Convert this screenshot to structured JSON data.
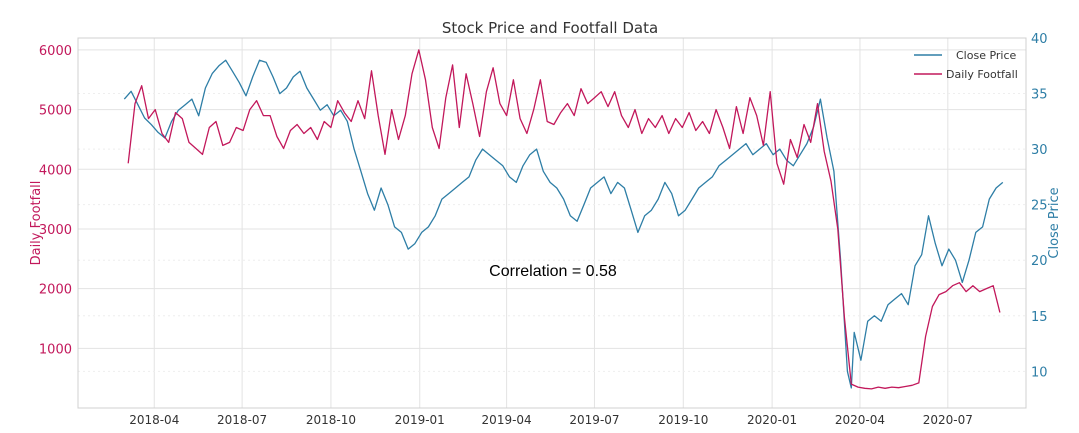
{
  "chart_data": {
    "type": "line",
    "title": "Stock Price and Footfall Data",
    "annotation": "Correlation = 0.58",
    "grid": true,
    "legend_position": "top-right",
    "colors": {
      "footfall": "#c2185b",
      "price": "#2e7ea6"
    },
    "x_axis": {
      "type": "date",
      "range": [
        "2018-01-12",
        "2020-09-20"
      ],
      "ticks": [
        "2018-04-01",
        "2018-07-01",
        "2018-10-01",
        "2019-01-01",
        "2019-04-01",
        "2019-07-01",
        "2019-10-01",
        "2020-01-01",
        "2020-04-01",
        "2020-07-01"
      ],
      "tick_labels": [
        "2018-04",
        "2018-07",
        "2018-10",
        "2019-01",
        "2019-04",
        "2019-07",
        "2019-10",
        "2020-01",
        "2020-04",
        "2020-07"
      ]
    },
    "y_left": {
      "label": "Daily Footfall",
      "range": [
        0,
        6200
      ],
      "ticks": [
        1000,
        2000,
        3000,
        4000,
        5000,
        6000
      ],
      "tick_labels": [
        "1000",
        "2000",
        "3000",
        "4000",
        "5000",
        "6000"
      ]
    },
    "y_right": {
      "label": "Close Price",
      "range": [
        6.7,
        40
      ],
      "ticks": [
        10,
        15,
        20,
        25,
        30,
        35,
        40
      ],
      "tick_labels": [
        "10",
        "15",
        "20",
        "25",
        "30",
        "35",
        "40"
      ]
    },
    "series": [
      {
        "name": "Close Price",
        "axis": "right",
        "color": "#2e7ea6",
        "points": [
          [
            "2018-03-01",
            34.5
          ],
          [
            "2018-03-08",
            35.2
          ],
          [
            "2018-03-15",
            34.0
          ],
          [
            "2018-03-22",
            32.8
          ],
          [
            "2018-03-29",
            32.2
          ],
          [
            "2018-04-05",
            31.5
          ],
          [
            "2018-04-12",
            31.0
          ],
          [
            "2018-04-19",
            32.5
          ],
          [
            "2018-04-26",
            33.5
          ],
          [
            "2018-05-03",
            34.0
          ],
          [
            "2018-05-10",
            34.5
          ],
          [
            "2018-05-17",
            33.0
          ],
          [
            "2018-05-24",
            35.5
          ],
          [
            "2018-05-31",
            36.8
          ],
          [
            "2018-06-07",
            37.5
          ],
          [
            "2018-06-14",
            38.0
          ],
          [
            "2018-06-21",
            37.0
          ],
          [
            "2018-06-28",
            36.0
          ],
          [
            "2018-07-05",
            34.8
          ],
          [
            "2018-07-12",
            36.5
          ],
          [
            "2018-07-19",
            38.0
          ],
          [
            "2018-07-26",
            37.8
          ],
          [
            "2018-08-02",
            36.5
          ],
          [
            "2018-08-09",
            35.0
          ],
          [
            "2018-08-16",
            35.5
          ],
          [
            "2018-08-23",
            36.5
          ],
          [
            "2018-08-30",
            37.0
          ],
          [
            "2018-09-06",
            35.5
          ],
          [
            "2018-09-13",
            34.5
          ],
          [
            "2018-09-20",
            33.5
          ],
          [
            "2018-09-27",
            34.0
          ],
          [
            "2018-10-04",
            33.0
          ],
          [
            "2018-10-11",
            33.5
          ],
          [
            "2018-10-18",
            32.5
          ],
          [
            "2018-10-25",
            30.0
          ],
          [
            "2018-11-01",
            28.0
          ],
          [
            "2018-11-08",
            26.0
          ],
          [
            "2018-11-15",
            24.5
          ],
          [
            "2018-11-22",
            26.5
          ],
          [
            "2018-11-29",
            25.0
          ],
          [
            "2018-12-06",
            23.0
          ],
          [
            "2018-12-13",
            22.5
          ],
          [
            "2018-12-20",
            21.0
          ],
          [
            "2018-12-27",
            21.5
          ],
          [
            "2019-01-03",
            22.5
          ],
          [
            "2019-01-10",
            23.0
          ],
          [
            "2019-01-17",
            24.0
          ],
          [
            "2019-01-24",
            25.5
          ],
          [
            "2019-01-31",
            26.0
          ],
          [
            "2019-02-07",
            26.5
          ],
          [
            "2019-02-14",
            27.0
          ],
          [
            "2019-02-21",
            27.5
          ],
          [
            "2019-02-28",
            29.0
          ],
          [
            "2019-03-07",
            30.0
          ],
          [
            "2019-03-14",
            29.5
          ],
          [
            "2019-03-21",
            29.0
          ],
          [
            "2019-03-28",
            28.5
          ],
          [
            "2019-04-04",
            27.5
          ],
          [
            "2019-04-11",
            27.0
          ],
          [
            "2019-04-18",
            28.5
          ],
          [
            "2019-04-25",
            29.5
          ],
          [
            "2019-05-02",
            30.0
          ],
          [
            "2019-05-09",
            28.0
          ],
          [
            "2019-05-16",
            27.0
          ],
          [
            "2019-05-23",
            26.5
          ],
          [
            "2019-05-30",
            25.5
          ],
          [
            "2019-06-06",
            24.0
          ],
          [
            "2019-06-13",
            23.5
          ],
          [
            "2019-06-20",
            25.0
          ],
          [
            "2019-06-27",
            26.5
          ],
          [
            "2019-07-04",
            27.0
          ],
          [
            "2019-07-11",
            27.5
          ],
          [
            "2019-07-18",
            26.0
          ],
          [
            "2019-07-25",
            27.0
          ],
          [
            "2019-08-01",
            26.5
          ],
          [
            "2019-08-08",
            24.5
          ],
          [
            "2019-08-15",
            22.5
          ],
          [
            "2019-08-22",
            24.0
          ],
          [
            "2019-08-29",
            24.5
          ],
          [
            "2019-09-05",
            25.5
          ],
          [
            "2019-09-12",
            27.0
          ],
          [
            "2019-09-19",
            26.0
          ],
          [
            "2019-09-26",
            24.0
          ],
          [
            "2019-10-03",
            24.5
          ],
          [
            "2019-10-10",
            25.5
          ],
          [
            "2019-10-17",
            26.5
          ],
          [
            "2019-10-24",
            27.0
          ],
          [
            "2019-10-31",
            27.5
          ],
          [
            "2019-11-07",
            28.5
          ],
          [
            "2019-11-14",
            29.0
          ],
          [
            "2019-11-21",
            29.5
          ],
          [
            "2019-11-28",
            30.0
          ],
          [
            "2019-12-05",
            30.5
          ],
          [
            "2019-12-12",
            29.5
          ],
          [
            "2019-12-19",
            30.0
          ],
          [
            "2019-12-26",
            30.5
          ],
          [
            "2020-01-02",
            29.5
          ],
          [
            "2020-01-09",
            30.0
          ],
          [
            "2020-01-16",
            29.0
          ],
          [
            "2020-01-23",
            28.5
          ],
          [
            "2020-01-30",
            29.5
          ],
          [
            "2020-02-06",
            30.5
          ],
          [
            "2020-02-13",
            32.0
          ],
          [
            "2020-02-20",
            34.5
          ],
          [
            "2020-02-27",
            31.0
          ],
          [
            "2020-03-05",
            28.0
          ],
          [
            "2020-03-12",
            20.0
          ],
          [
            "2020-03-19",
            10.0
          ],
          [
            "2020-03-23",
            8.5
          ],
          [
            "2020-03-26",
            13.5
          ],
          [
            "2020-04-02",
            11.0
          ],
          [
            "2020-04-09",
            14.5
          ],
          [
            "2020-04-16",
            15.0
          ],
          [
            "2020-04-23",
            14.5
          ],
          [
            "2020-04-30",
            16.0
          ],
          [
            "2020-05-07",
            16.5
          ],
          [
            "2020-05-14",
            17.0
          ],
          [
            "2020-05-21",
            16.0
          ],
          [
            "2020-05-28",
            19.5
          ],
          [
            "2020-06-04",
            20.5
          ],
          [
            "2020-06-11",
            24.0
          ],
          [
            "2020-06-18",
            21.5
          ],
          [
            "2020-06-25",
            19.5
          ],
          [
            "2020-07-02",
            21.0
          ],
          [
            "2020-07-09",
            20.0
          ],
          [
            "2020-07-16",
            18.0
          ],
          [
            "2020-07-23",
            20.0
          ],
          [
            "2020-07-30",
            22.5
          ],
          [
            "2020-08-06",
            23.0
          ],
          [
            "2020-08-13",
            25.5
          ],
          [
            "2020-08-20",
            26.5
          ],
          [
            "2020-08-27",
            27.0
          ]
        ]
      },
      {
        "name": "Daily Footfall",
        "axis": "left",
        "color": "#c2185b",
        "points": [
          [
            "2018-03-05",
            4100
          ],
          [
            "2018-03-12",
            5100
          ],
          [
            "2018-03-19",
            5400
          ],
          [
            "2018-03-26",
            4850
          ],
          [
            "2018-04-02",
            5000
          ],
          [
            "2018-04-09",
            4600
          ],
          [
            "2018-04-16",
            4450
          ],
          [
            "2018-04-23",
            4950
          ],
          [
            "2018-04-30",
            4850
          ],
          [
            "2018-05-07",
            4450
          ],
          [
            "2018-05-14",
            4350
          ],
          [
            "2018-05-21",
            4250
          ],
          [
            "2018-05-28",
            4700
          ],
          [
            "2018-06-04",
            4800
          ],
          [
            "2018-06-11",
            4400
          ],
          [
            "2018-06-18",
            4450
          ],
          [
            "2018-06-25",
            4700
          ],
          [
            "2018-07-02",
            4650
          ],
          [
            "2018-07-09",
            5000
          ],
          [
            "2018-07-16",
            5150
          ],
          [
            "2018-07-23",
            4900
          ],
          [
            "2018-07-30",
            4900
          ],
          [
            "2018-08-06",
            4550
          ],
          [
            "2018-08-13",
            4350
          ],
          [
            "2018-08-20",
            4650
          ],
          [
            "2018-08-27",
            4750
          ],
          [
            "2018-09-03",
            4600
          ],
          [
            "2018-09-10",
            4700
          ],
          [
            "2018-09-17",
            4500
          ],
          [
            "2018-09-24",
            4800
          ],
          [
            "2018-10-01",
            4700
          ],
          [
            "2018-10-08",
            5150
          ],
          [
            "2018-10-15",
            4950
          ],
          [
            "2018-10-22",
            4800
          ],
          [
            "2018-10-29",
            5150
          ],
          [
            "2018-11-05",
            4850
          ],
          [
            "2018-11-12",
            5650
          ],
          [
            "2018-11-19",
            4900
          ],
          [
            "2018-11-26",
            4250
          ],
          [
            "2018-12-03",
            5000
          ],
          [
            "2018-12-10",
            4500
          ],
          [
            "2018-12-17",
            4900
          ],
          [
            "2018-12-24",
            5600
          ],
          [
            "2018-12-31",
            6000
          ],
          [
            "2019-01-07",
            5500
          ],
          [
            "2019-01-14",
            4700
          ],
          [
            "2019-01-21",
            4350
          ],
          [
            "2019-01-28",
            5200
          ],
          [
            "2019-02-04",
            5750
          ],
          [
            "2019-02-11",
            4700
          ],
          [
            "2019-02-18",
            5600
          ],
          [
            "2019-02-25",
            5100
          ],
          [
            "2019-03-04",
            4550
          ],
          [
            "2019-03-11",
            5300
          ],
          [
            "2019-03-18",
            5700
          ],
          [
            "2019-03-25",
            5100
          ],
          [
            "2019-04-01",
            4900
          ],
          [
            "2019-04-08",
            5500
          ],
          [
            "2019-04-15",
            4850
          ],
          [
            "2019-04-22",
            4600
          ],
          [
            "2019-04-29",
            5000
          ],
          [
            "2019-05-06",
            5500
          ],
          [
            "2019-05-13",
            4800
          ],
          [
            "2019-05-20",
            4750
          ],
          [
            "2019-05-27",
            4950
          ],
          [
            "2019-06-03",
            5100
          ],
          [
            "2019-06-10",
            4900
          ],
          [
            "2019-06-17",
            5350
          ],
          [
            "2019-06-24",
            5100
          ],
          [
            "2019-07-01",
            5200
          ],
          [
            "2019-07-08",
            5300
          ],
          [
            "2019-07-15",
            5050
          ],
          [
            "2019-07-22",
            5300
          ],
          [
            "2019-07-29",
            4900
          ],
          [
            "2019-08-05",
            4700
          ],
          [
            "2019-08-12",
            5000
          ],
          [
            "2019-08-19",
            4600
          ],
          [
            "2019-08-26",
            4850
          ],
          [
            "2019-09-02",
            4700
          ],
          [
            "2019-09-09",
            4900
          ],
          [
            "2019-09-16",
            4600
          ],
          [
            "2019-09-23",
            4850
          ],
          [
            "2019-09-30",
            4700
          ],
          [
            "2019-10-07",
            4950
          ],
          [
            "2019-10-14",
            4650
          ],
          [
            "2019-10-21",
            4800
          ],
          [
            "2019-10-28",
            4600
          ],
          [
            "2019-11-04",
            5000
          ],
          [
            "2019-11-11",
            4700
          ],
          [
            "2019-11-18",
            4350
          ],
          [
            "2019-11-25",
            5050
          ],
          [
            "2019-12-02",
            4600
          ],
          [
            "2019-12-09",
            5200
          ],
          [
            "2019-12-16",
            4900
          ],
          [
            "2019-12-23",
            4400
          ],
          [
            "2019-12-30",
            5300
          ],
          [
            "2020-01-06",
            4100
          ],
          [
            "2020-01-13",
            3750
          ],
          [
            "2020-01-20",
            4500
          ],
          [
            "2020-01-27",
            4200
          ],
          [
            "2020-02-03",
            4750
          ],
          [
            "2020-02-10",
            4450
          ],
          [
            "2020-02-17",
            5100
          ],
          [
            "2020-02-24",
            4300
          ],
          [
            "2020-03-02",
            3800
          ],
          [
            "2020-03-09",
            3000
          ],
          [
            "2020-03-16",
            1500
          ],
          [
            "2020-03-23",
            400
          ],
          [
            "2020-03-30",
            350
          ],
          [
            "2020-04-06",
            330
          ],
          [
            "2020-04-13",
            320
          ],
          [
            "2020-04-20",
            350
          ],
          [
            "2020-04-27",
            330
          ],
          [
            "2020-05-04",
            350
          ],
          [
            "2020-05-11",
            340
          ],
          [
            "2020-05-18",
            360
          ],
          [
            "2020-05-25",
            380
          ],
          [
            "2020-06-01",
            420
          ],
          [
            "2020-06-08",
            1200
          ],
          [
            "2020-06-15",
            1700
          ],
          [
            "2020-06-22",
            1900
          ],
          [
            "2020-06-29",
            1950
          ],
          [
            "2020-07-06",
            2050
          ],
          [
            "2020-07-13",
            2100
          ],
          [
            "2020-07-20",
            1950
          ],
          [
            "2020-07-27",
            2050
          ],
          [
            "2020-08-03",
            1950
          ],
          [
            "2020-08-10",
            2000
          ],
          [
            "2020-08-17",
            2050
          ],
          [
            "2020-08-24",
            1600
          ]
        ]
      }
    ]
  }
}
